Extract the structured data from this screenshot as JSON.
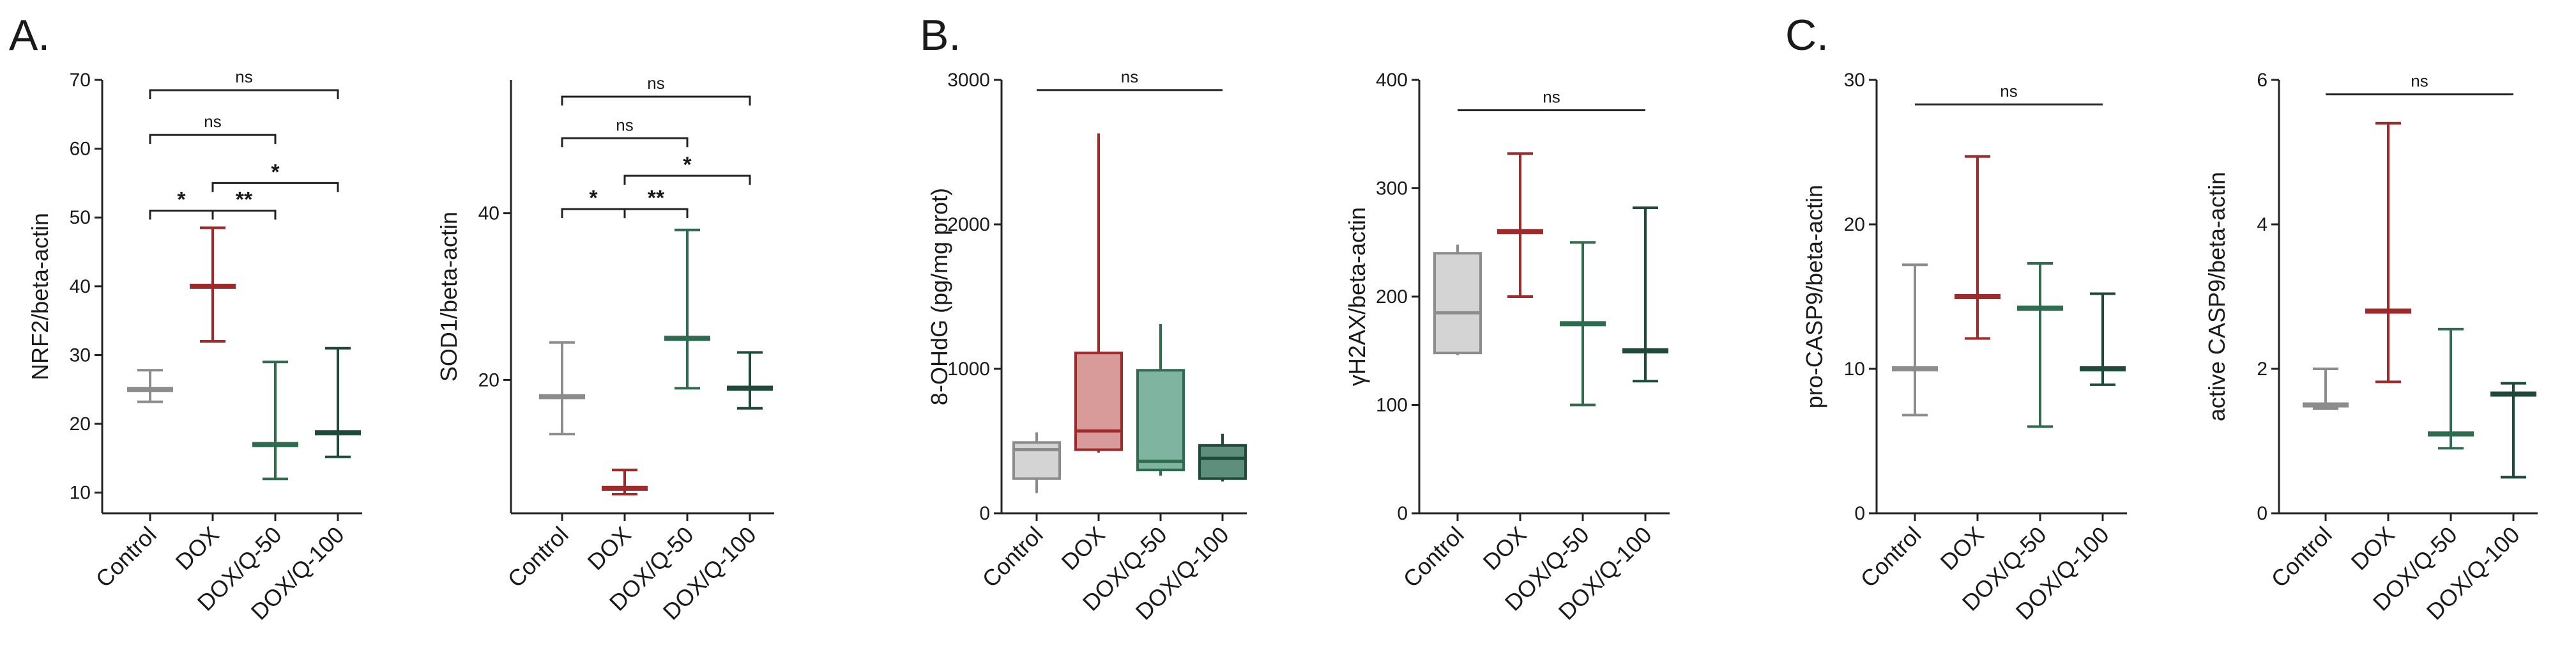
{
  "panels": [
    {
      "letter": "A."
    },
    {
      "letter": "B."
    },
    {
      "letter": "C."
    }
  ],
  "colors": {
    "Control": "#8c8c8c",
    "DOX": "#9e2a2b",
    "DOX/Q-50": "#2e6b4f",
    "DOX/Q-100": "#1f4a3a",
    "box_fill": [
      "#d4d4d4",
      "#d99a9a",
      "#7fb4a0",
      "#5f8f7c"
    ]
  },
  "chart_data": [
    {
      "type": "median-range",
      "panel": "A.",
      "ylabel": "NRF2/beta-actin",
      "categories": [
        "Control",
        "DOX",
        "DOX/Q-50",
        "DOX/Q-100"
      ],
      "ylim": [
        7,
        70
      ],
      "yticks": [
        10,
        20,
        30,
        40,
        50,
        60,
        70
      ],
      "median": [
        25,
        40,
        17,
        18.7
      ],
      "min": [
        23.2,
        32,
        12,
        15.2
      ],
      "max": [
        27.8,
        48.5,
        29,
        31
      ],
      "comparisons": [
        {
          "from": 0,
          "to": 3,
          "label": "ns",
          "y": 68.5
        },
        {
          "from": 0,
          "to": 2,
          "label": "ns",
          "y": 62
        },
        {
          "from": 1,
          "to": 3,
          "label": "*",
          "y": 55
        },
        {
          "from": 0,
          "to": 1,
          "label": "*",
          "y": 51
        },
        {
          "from": 1,
          "to": 2,
          "label": "**",
          "y": 51
        }
      ]
    },
    {
      "type": "median-range",
      "panel": "A.",
      "ylabel": "SOD1/beta-actin",
      "categories": [
        "Control",
        "DOX",
        "DOX/Q-50",
        "DOX/Q-100"
      ],
      "ylim": [
        4,
        56
      ],
      "yticks": [
        20,
        40
      ],
      "median": [
        18,
        7,
        25,
        19
      ],
      "min": [
        13.5,
        6.3,
        19,
        16.6
      ],
      "max": [
        24.5,
        9.2,
        38,
        23.3
      ],
      "comparisons": [
        {
          "from": 0,
          "to": 3,
          "label": "ns",
          "y": 54
        },
        {
          "from": 0,
          "to": 2,
          "label": "ns",
          "y": 49
        },
        {
          "from": 1,
          "to": 3,
          "label": "*",
          "y": 44.5
        },
        {
          "from": 0,
          "to": 1,
          "label": "*",
          "y": 40.5
        },
        {
          "from": 1,
          "to": 2,
          "label": "**",
          "y": 40.5
        }
      ]
    },
    {
      "type": "box",
      "panel": "B.",
      "ylabel": "8-OHdG (pg/mg prot)",
      "categories": [
        "Control",
        "DOX",
        "DOX/Q-50",
        "DOX/Q-100"
      ],
      "ylim": [
        0,
        3000
      ],
      "yticks": [
        0,
        1000,
        2000,
        3000
      ],
      "min": [
        140,
        420,
        260,
        220
      ],
      "q1": [
        240,
        440,
        300,
        240
      ],
      "median": [
        440,
        570,
        360,
        380
      ],
      "q3": [
        490,
        1110,
        990,
        470
      ],
      "max": [
        560,
        2630,
        1310,
        550
      ],
      "comparisons": [
        {
          "from": 0,
          "to": 3,
          "label": "ns",
          "y": 2930
        }
      ]
    },
    {
      "type": "box",
      "panel": "B.",
      "ylabel": "γH2AX/beta-actin",
      "categories": [
        "Control",
        "DOX",
        "DOX/Q-50",
        "DOX/Q-100"
      ],
      "ylim": [
        0,
        400
      ],
      "yticks": [
        0,
        100,
        200,
        300,
        400
      ],
      "min": [
        146,
        200,
        100,
        122
      ],
      "q1": [
        148,
        null,
        null,
        null
      ],
      "median": [
        185,
        260,
        175,
        150
      ],
      "q3": [
        240,
        null,
        null,
        null
      ],
      "max": [
        248,
        332,
        250,
        282
      ],
      "comparisons": [
        {
          "from": 0,
          "to": 3,
          "label": "ns",
          "y": 372
        }
      ]
    },
    {
      "type": "median-range",
      "panel": "C.",
      "ylabel": "pro-CASP9/beta-actin",
      "categories": [
        "Control",
        "DOX",
        "DOX/Q-50",
        "DOX/Q-100"
      ],
      "ylim": [
        0,
        30
      ],
      "yticks": [
        0,
        10,
        20,
        30
      ],
      "median": [
        10,
        15,
        14.2,
        10
      ],
      "min": [
        6.8,
        12.1,
        6,
        8.9
      ],
      "max": [
        17.2,
        24.7,
        17.3,
        15.2
      ],
      "comparisons": [
        {
          "from": 0,
          "to": 3,
          "label": "ns",
          "y": 28.3
        }
      ]
    },
    {
      "type": "median-range",
      "panel": "C.",
      "ylabel": "active CASP9/beta-actin",
      "categories": [
        "Control",
        "DOX",
        "DOX/Q-50",
        "DOX/Q-100"
      ],
      "ylim": [
        0,
        6
      ],
      "yticks": [
        0,
        2,
        4,
        6
      ],
      "median": [
        1.5,
        2.8,
        1.1,
        1.65
      ],
      "min": [
        1.45,
        1.82,
        0.9,
        0.5
      ],
      "max": [
        2,
        5.4,
        2.55,
        1.8
      ],
      "comparisons": [
        {
          "from": 0,
          "to": 3,
          "label": "ns",
          "y": 5.8
        }
      ]
    }
  ]
}
